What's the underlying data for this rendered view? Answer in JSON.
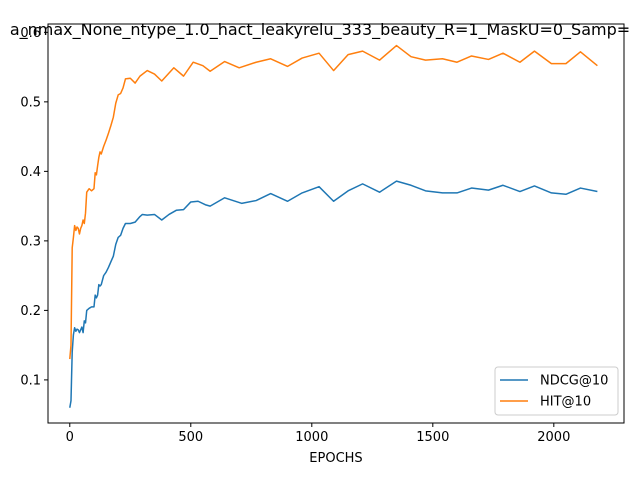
{
  "chart_data": {
    "type": "line",
    "title": "a_nmax_None_ntype_1.0_hact_leakyrelu_333_beauty_R=1_MaskU=0_Samp=",
    "xlabel": "EPOCHS",
    "ylabel": "",
    "xlim": [
      -90,
      2290
    ],
    "ylim": [
      0.038,
      0.612
    ],
    "xticks": [
      0,
      500,
      1000,
      1500,
      2000
    ],
    "yticks": [
      0.1,
      0.2,
      0.3,
      0.4,
      0.5,
      0.6
    ],
    "ytick_labels": [
      "0.1",
      "0.2",
      "0.3",
      "0.4",
      "0.5",
      "0.6"
    ],
    "legend_position": "lower-right",
    "series": [
      {
        "name": "NDCG@10",
        "color": "#1f77b4",
        "points": [
          [
            0,
            0.06
          ],
          [
            5,
            0.07
          ],
          [
            10,
            0.14
          ],
          [
            15,
            0.165
          ],
          [
            20,
            0.175
          ],
          [
            25,
            0.17
          ],
          [
            30,
            0.173
          ],
          [
            35,
            0.172
          ],
          [
            40,
            0.168
          ],
          [
            45,
            0.172
          ],
          [
            50,
            0.176
          ],
          [
            55,
            0.168
          ],
          [
            60,
            0.185
          ],
          [
            65,
            0.182
          ],
          [
            70,
            0.2
          ],
          [
            80,
            0.203
          ],
          [
            90,
            0.205
          ],
          [
            100,
            0.205
          ],
          [
            105,
            0.222
          ],
          [
            110,
            0.218
          ],
          [
            115,
            0.222
          ],
          [
            120,
            0.237
          ],
          [
            125,
            0.235
          ],
          [
            130,
            0.237
          ],
          [
            140,
            0.25
          ],
          [
            150,
            0.255
          ],
          [
            160,
            0.262
          ],
          [
            170,
            0.27
          ],
          [
            180,
            0.278
          ],
          [
            190,
            0.295
          ],
          [
            200,
            0.305
          ],
          [
            210,
            0.308
          ],
          [
            220,
            0.318
          ],
          [
            230,
            0.325
          ],
          [
            250,
            0.325
          ],
          [
            270,
            0.327
          ],
          [
            290,
            0.335
          ],
          [
            300,
            0.338
          ],
          [
            320,
            0.337
          ],
          [
            350,
            0.338
          ],
          [
            380,
            0.33
          ],
          [
            410,
            0.338
          ],
          [
            440,
            0.344
          ],
          [
            470,
            0.345
          ],
          [
            500,
            0.356
          ],
          [
            530,
            0.357
          ],
          [
            560,
            0.352
          ],
          [
            580,
            0.35
          ],
          [
            640,
            0.362
          ],
          [
            710,
            0.354
          ],
          [
            770,
            0.358
          ],
          [
            830,
            0.368
          ],
          [
            900,
            0.357
          ],
          [
            960,
            0.369
          ],
          [
            1030,
            0.378
          ],
          [
            1090,
            0.357
          ],
          [
            1150,
            0.372
          ],
          [
            1210,
            0.382
          ],
          [
            1280,
            0.37
          ],
          [
            1350,
            0.386
          ],
          [
            1410,
            0.38
          ],
          [
            1470,
            0.372
          ],
          [
            1540,
            0.369
          ],
          [
            1600,
            0.369
          ],
          [
            1660,
            0.376
          ],
          [
            1730,
            0.373
          ],
          [
            1790,
            0.38
          ],
          [
            1860,
            0.371
          ],
          [
            1920,
            0.379
          ],
          [
            1990,
            0.369
          ],
          [
            2050,
            0.367
          ],
          [
            2110,
            0.376
          ],
          [
            2180,
            0.371
          ]
        ]
      },
      {
        "name": "HIT@10",
        "color": "#ff7f0e",
        "points": [
          [
            0,
            0.13
          ],
          [
            5,
            0.15
          ],
          [
            10,
            0.29
          ],
          [
            15,
            0.305
          ],
          [
            20,
            0.322
          ],
          [
            25,
            0.315
          ],
          [
            30,
            0.32
          ],
          [
            35,
            0.318
          ],
          [
            40,
            0.31
          ],
          [
            45,
            0.318
          ],
          [
            50,
            0.322
          ],
          [
            55,
            0.33
          ],
          [
            60,
            0.325
          ],
          [
            65,
            0.34
          ],
          [
            70,
            0.37
          ],
          [
            80,
            0.375
          ],
          [
            90,
            0.372
          ],
          [
            100,
            0.375
          ],
          [
            105,
            0.398
          ],
          [
            110,
            0.395
          ],
          [
            115,
            0.408
          ],
          [
            120,
            0.42
          ],
          [
            125,
            0.428
          ],
          [
            130,
            0.425
          ],
          [
            140,
            0.436
          ],
          [
            150,
            0.445
          ],
          [
            160,
            0.455
          ],
          [
            170,
            0.466
          ],
          [
            180,
            0.478
          ],
          [
            190,
            0.498
          ],
          [
            200,
            0.51
          ],
          [
            210,
            0.512
          ],
          [
            220,
            0.52
          ],
          [
            230,
            0.533
          ],
          [
            250,
            0.534
          ],
          [
            270,
            0.527
          ],
          [
            290,
            0.537
          ],
          [
            320,
            0.545
          ],
          [
            350,
            0.54
          ],
          [
            380,
            0.53
          ],
          [
            430,
            0.549
          ],
          [
            470,
            0.537
          ],
          [
            510,
            0.557
          ],
          [
            550,
            0.552
          ],
          [
            580,
            0.544
          ],
          [
            640,
            0.558
          ],
          [
            700,
            0.549
          ],
          [
            770,
            0.557
          ],
          [
            830,
            0.562
          ],
          [
            900,
            0.551
          ],
          [
            960,
            0.563
          ],
          [
            1030,
            0.57
          ],
          [
            1090,
            0.545
          ],
          [
            1150,
            0.568
          ],
          [
            1210,
            0.573
          ],
          [
            1280,
            0.56
          ],
          [
            1350,
            0.581
          ],
          [
            1410,
            0.565
          ],
          [
            1470,
            0.56
          ],
          [
            1540,
            0.562
          ],
          [
            1600,
            0.557
          ],
          [
            1660,
            0.566
          ],
          [
            1730,
            0.561
          ],
          [
            1790,
            0.57
          ],
          [
            1860,
            0.557
          ],
          [
            1920,
            0.573
          ],
          [
            1990,
            0.555
          ],
          [
            2050,
            0.555
          ],
          [
            2110,
            0.572
          ],
          [
            2180,
            0.552
          ]
        ]
      }
    ]
  }
}
